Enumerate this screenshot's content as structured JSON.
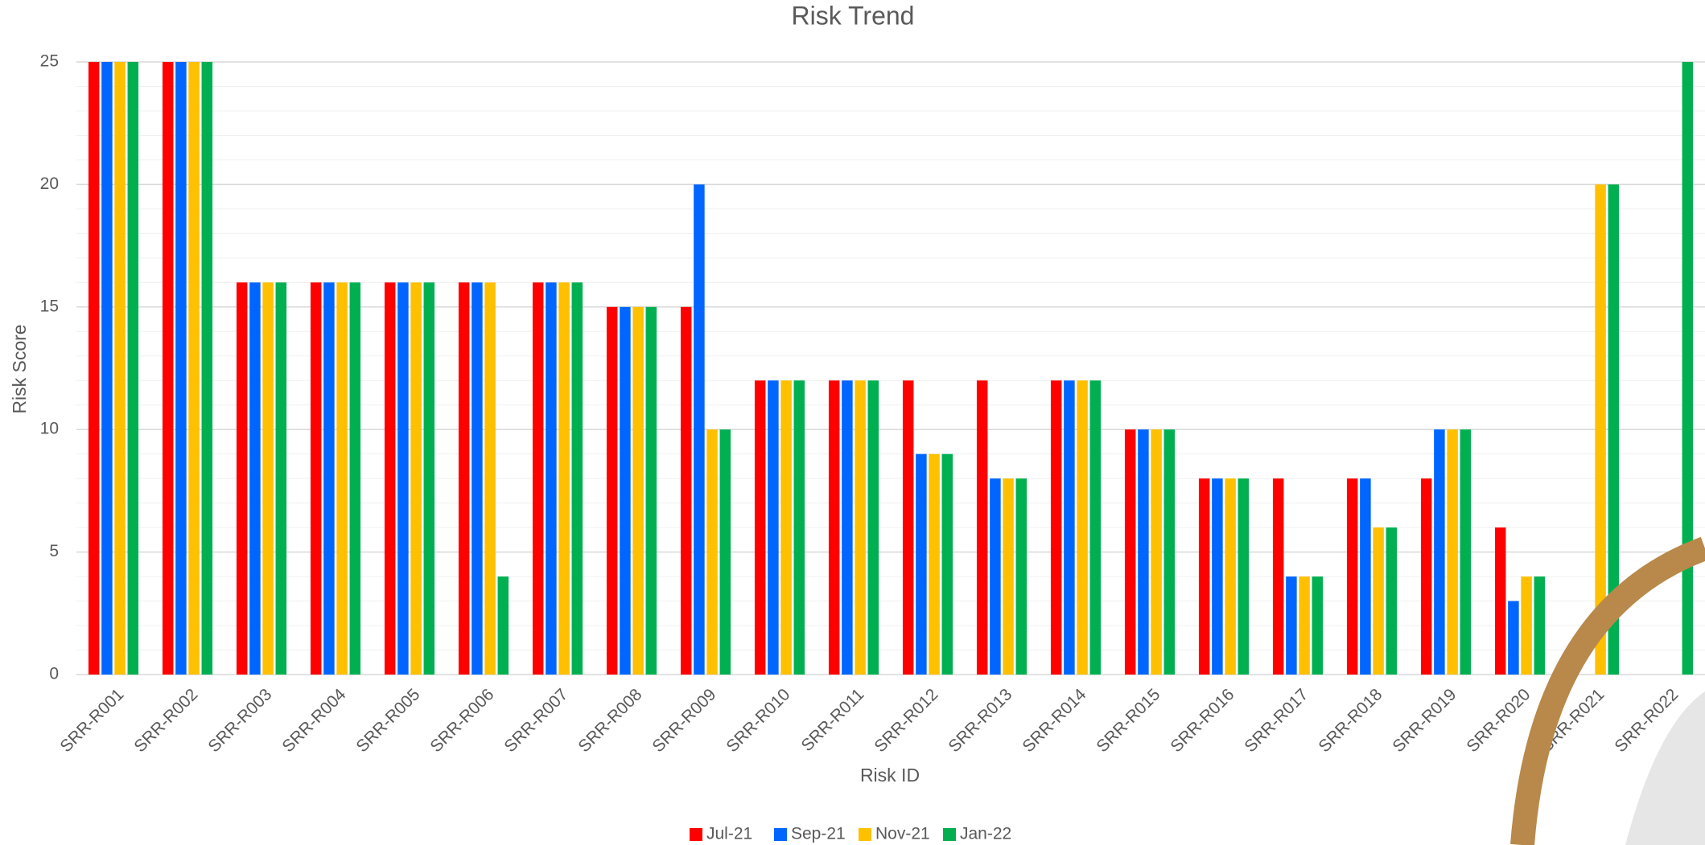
{
  "chart_data": {
    "type": "bar",
    "title": "Risk Trend",
    "x_label": "Risk ID",
    "y_label": "Risk Score",
    "categories": [
      "SRR-R001",
      "SRR-R002",
      "SRR-R003",
      "SRR-R004",
      "SRR-R005",
      "SRR-R006",
      "SRR-R007",
      "SRR-R008",
      "SRR-R009",
      "SRR-R010",
      "SRR-R011",
      "SRR-R012",
      "SRR-R013",
      "SRR-R014",
      "SRR-R015",
      "SRR-R016",
      "SRR-R017",
      "SRR-R018",
      "SRR-R019",
      "SRR-R020",
      "SRR-R021",
      "SRR-R022"
    ],
    "series": [
      {
        "name": "Jul-21",
        "color": "#ff0000",
        "values": [
          25,
          25,
          16,
          16,
          16,
          16,
          16,
          15,
          15,
          12,
          12,
          12,
          12,
          12,
          10,
          8,
          8,
          8,
          8,
          6,
          null,
          null
        ]
      },
      {
        "name": "Sep-21",
        "color": "#0066ff",
        "values": [
          25,
          25,
          16,
          16,
          16,
          16,
          16,
          15,
          20,
          12,
          12,
          9,
          8,
          12,
          10,
          8,
          4,
          8,
          10,
          3,
          null,
          null
        ]
      },
      {
        "name": "Nov-21",
        "color": "#ffc000",
        "values": [
          25,
          25,
          16,
          16,
          16,
          16,
          16,
          15,
          10,
          12,
          12,
          9,
          8,
          12,
          10,
          8,
          4,
          6,
          10,
          4,
          20,
          null
        ]
      },
      {
        "name": "Jan-22",
        "color": "#00b050",
        "values": [
          25,
          25,
          16,
          16,
          16,
          4,
          16,
          15,
          10,
          12,
          12,
          9,
          8,
          12,
          10,
          8,
          4,
          6,
          10,
          4,
          20,
          25
        ]
      }
    ],
    "ylim": [
      0,
      25
    ],
    "yticks": [
      0,
      5,
      10,
      15,
      20,
      25
    ],
    "grid": true,
    "legend": "bottom"
  }
}
